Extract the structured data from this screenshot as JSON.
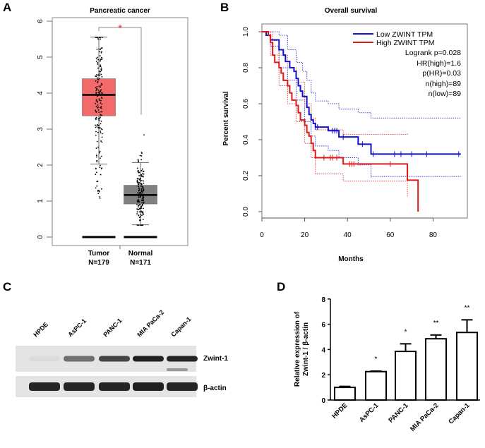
{
  "panels": {
    "a": "A",
    "b": "B",
    "c": "C",
    "d": "D"
  },
  "chart_data": [
    {
      "type": "box",
      "title": "Pancreatic cancer",
      "ylim": [
        0,
        6
      ],
      "yticks": [
        "0",
        "1",
        "2",
        "3",
        "4",
        "5",
        "6"
      ],
      "significance": "*",
      "colors": {
        "Tumor": "#f26a6a",
        "Normal": "#808080",
        "significance": "#e8382e"
      },
      "groups": [
        {
          "name": "Tumor",
          "n_label": "N=179",
          "whisker_low": 2.03,
          "q1": 3.37,
          "median": 3.95,
          "q3": 4.4,
          "whisker_high": 5.56
        },
        {
          "name": "Normal",
          "n_label": "N=171",
          "whisker_low": 0.34,
          "q1": 0.92,
          "median": 1.17,
          "q3": 1.44,
          "whisker_high": 2.07
        }
      ]
    },
    {
      "type": "line",
      "title": "Overall survival",
      "xlabel": "Months",
      "ylabel": "Percent survival",
      "xlim": [
        0,
        95
      ],
      "ylim": [
        0,
        1.05
      ],
      "xticks": [
        "0",
        "20",
        "40",
        "60",
        "80"
      ],
      "yticks": [
        "0.0",
        "0.2",
        "0.4",
        "0.6",
        "0.8",
        "1.0"
      ],
      "legend_position": "top-right",
      "annotations": [
        "Logrank p=0.028",
        "HR(high)=1.6",
        "p(HR)=0.03",
        "n(high)=89",
        "n(low)=89"
      ],
      "series": [
        {
          "name": "Low ZWINT TPM",
          "color": "#1010d0",
          "steps": [
            [
              0,
              1
            ],
            [
              2,
              0.98
            ],
            [
              4,
              0.955
            ],
            [
              8,
              0.9
            ],
            [
              10,
              0.87
            ],
            [
              11,
              0.835
            ],
            [
              13,
              0.8
            ],
            [
              15,
              0.78
            ],
            [
              16,
              0.74
            ],
            [
              17,
              0.7
            ],
            [
              18,
              0.67
            ],
            [
              19,
              0.64
            ],
            [
              21,
              0.58
            ],
            [
              22,
              0.54
            ],
            [
              23,
              0.51
            ],
            [
              24,
              0.49
            ],
            [
              25,
              0.47
            ],
            [
              31,
              0.45
            ],
            [
              36,
              0.415
            ],
            [
              45,
              0.375
            ],
            [
              51,
              0.32
            ],
            [
              93,
              0.32
            ]
          ],
          "censored": [
            25,
            26,
            33,
            34,
            35,
            38,
            47,
            52,
            62,
            65,
            70,
            77,
            92
          ],
          "ci_upper": [
            [
              0,
              1
            ],
            [
              8,
              0.98
            ],
            [
              12,
              0.9
            ],
            [
              16,
              0.83
            ],
            [
              19,
              0.78
            ],
            [
              21,
              0.73
            ],
            [
              23,
              0.66
            ],
            [
              25,
              0.615
            ],
            [
              31,
              0.6
            ],
            [
              36,
              0.57
            ],
            [
              45,
              0.55
            ],
            [
              51,
              0.52
            ],
            [
              93,
              0.52
            ]
          ],
          "ci_lower": [
            [
              0,
              1
            ],
            [
              4,
              0.92
            ],
            [
              8,
              0.8
            ],
            [
              12,
              0.73
            ],
            [
              16,
              0.62
            ],
            [
              20,
              0.5
            ],
            [
              23,
              0.42
            ],
            [
              25,
              0.365
            ],
            [
              31,
              0.34
            ],
            [
              36,
              0.3
            ],
            [
              45,
              0.26
            ],
            [
              51,
              0.195
            ],
            [
              93,
              0.195
            ]
          ]
        },
        {
          "name": "High ZWINT TPM",
          "color": "#e01818",
          "steps": [
            [
              0,
              1
            ],
            [
              3,
              0.98
            ],
            [
              4,
              0.94
            ],
            [
              5,
              0.87
            ],
            [
              6,
              0.83
            ],
            [
              8,
              0.8
            ],
            [
              9,
              0.77
            ],
            [
              10,
              0.73
            ],
            [
              12,
              0.7
            ],
            [
              13,
              0.66
            ],
            [
              14,
              0.62
            ],
            [
              16,
              0.59
            ],
            [
              17,
              0.55
            ],
            [
              18,
              0.51
            ],
            [
              20,
              0.48
            ],
            [
              21,
              0.44
            ],
            [
              22,
              0.42
            ],
            [
              23,
              0.38
            ],
            [
              24,
              0.34
            ],
            [
              25,
              0.3
            ],
            [
              38,
              0.265
            ],
            [
              68,
              0.175
            ],
            [
              73,
              0
            ]
          ],
          "censored": [
            29,
            32,
            33,
            35,
            41,
            42,
            43,
            60
          ],
          "ci_upper": [
            [
              0,
              1
            ],
            [
              5,
              0.95
            ],
            [
              8,
              0.87
            ],
            [
              12,
              0.8
            ],
            [
              16,
              0.72
            ],
            [
              20,
              0.6
            ],
            [
              23,
              0.52
            ],
            [
              25,
              0.455
            ],
            [
              38,
              0.43
            ],
            [
              68,
              0.44
            ]
          ],
          "ci_lower": [
            [
              0,
              1
            ],
            [
              4,
              0.87
            ],
            [
              8,
              0.7
            ],
            [
              12,
              0.6
            ],
            [
              16,
              0.5
            ],
            [
              20,
              0.38
            ],
            [
              23,
              0.3
            ],
            [
              25,
              0.21
            ],
            [
              38,
              0.17
            ],
            [
              68,
              0.08
            ]
          ]
        }
      ]
    },
    {
      "type": "western_blot",
      "lanes": [
        "HPDE",
        "AsPC-1",
        "PANC-1",
        "MIA PaCa-2",
        "Capan-1"
      ],
      "rows": [
        {
          "name": "Zwint-1",
          "intensity": [
            0.05,
            0.55,
            0.75,
            0.92,
            0.9
          ]
        },
        {
          "name": "β-actin",
          "intensity": [
            0.9,
            0.9,
            0.9,
            0.92,
            0.9
          ]
        }
      ]
    },
    {
      "type": "bar",
      "ylabel": "Relative expression of Zwint-1 / β-actin",
      "ylabel_lines": [
        "Relative expression of",
        "Zwint-1 / β-actin"
      ],
      "ylim": [
        0,
        8
      ],
      "yticks": [
        "0",
        "2",
        "4",
        "6",
        "8"
      ],
      "categories": [
        "HPDE",
        "AsPC-1",
        "PANC-1",
        "MIA PaCa-2",
        "Capan-1"
      ],
      "values": [
        1.0,
        2.25,
        3.85,
        4.85,
        5.35
      ],
      "errors": [
        0.08,
        0.04,
        0.6,
        0.3,
        1.0
      ],
      "significance": [
        "",
        "*",
        "*",
        "**",
        "**"
      ]
    }
  ]
}
